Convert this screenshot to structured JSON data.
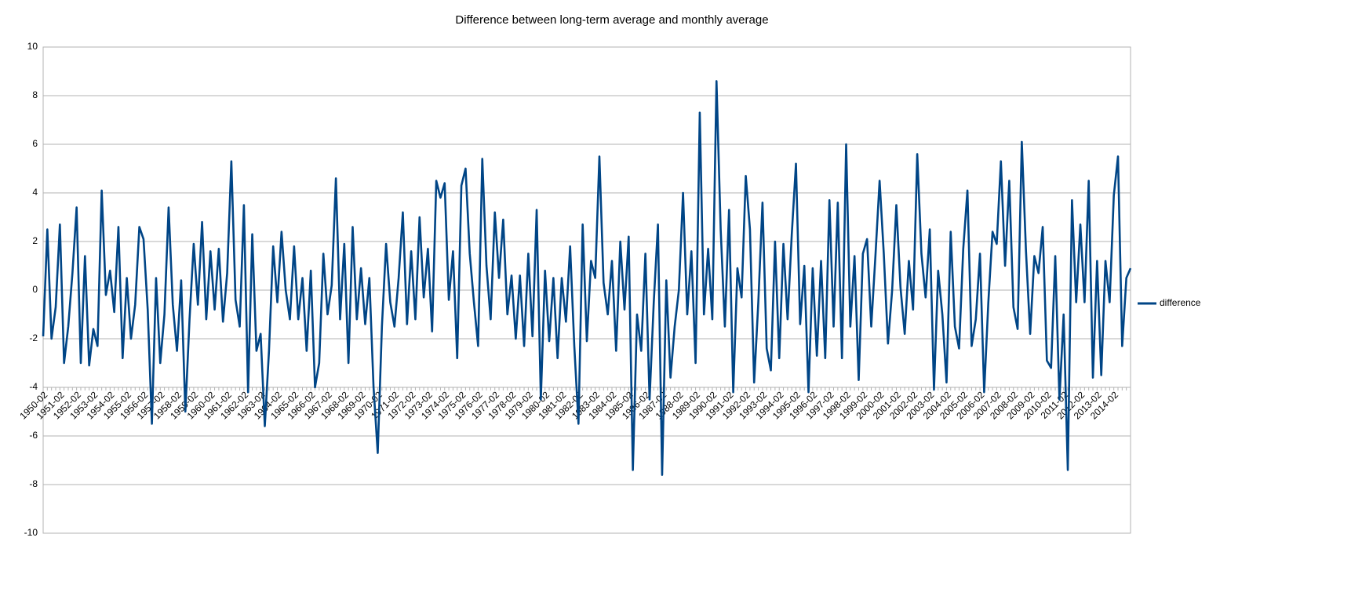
{
  "chart_data": {
    "type": "line",
    "title": "Difference between long-term average and monthly average",
    "categories": [
      "1950-02",
      null,
      null,
      null,
      "1951-02",
      null,
      null,
      null,
      "1952-02",
      null,
      null,
      null,
      "1953-02",
      null,
      null,
      null,
      "1954-02",
      null,
      null,
      null,
      "1955-02",
      null,
      null,
      null,
      "1956-02",
      null,
      null,
      null,
      "1957-02",
      null,
      null,
      null,
      "1958-02",
      null,
      null,
      null,
      "1959-02",
      null,
      null,
      null,
      "1960-02",
      null,
      null,
      null,
      "1961-02",
      null,
      null,
      null,
      "1962-02",
      null,
      null,
      null,
      "1963-02",
      null,
      null,
      null,
      "1964-02",
      null,
      null,
      null,
      "1965-02",
      null,
      null,
      null,
      "1966-02",
      null,
      null,
      null,
      "1967-02",
      null,
      null,
      null,
      "1968-02",
      null,
      null,
      null,
      "1969-02",
      null,
      null,
      null,
      "1970-02",
      null,
      null,
      null,
      "1971-02",
      null,
      null,
      null,
      "1972-02",
      null,
      null,
      null,
      "1973-02",
      null,
      null,
      null,
      "1974-02",
      null,
      null,
      null,
      "1975-02",
      null,
      null,
      null,
      "1976-02",
      null,
      null,
      null,
      "1977-02",
      null,
      null,
      null,
      "1978-02",
      null,
      null,
      null,
      "1979-02",
      null,
      null,
      null,
      "1980-02",
      null,
      null,
      null,
      "1981-02",
      null,
      null,
      null,
      "1982-02",
      null,
      null,
      null,
      "1983-02",
      null,
      null,
      null,
      "1984-02",
      null,
      null,
      null,
      "1985-02",
      null,
      null,
      null,
      "1986-02",
      null,
      null,
      null,
      "1987-02",
      null,
      null,
      null,
      "1988-02",
      null,
      null,
      null,
      "1989-02",
      null,
      null,
      null,
      "1990-02",
      null,
      null,
      null,
      "1991-02",
      null,
      null,
      null,
      "1992-02",
      null,
      null,
      null,
      "1993-02",
      null,
      null,
      null,
      "1994-02",
      null,
      null,
      null,
      "1995-02",
      null,
      null,
      null,
      "1996-02",
      null,
      null,
      null,
      "1997-02",
      null,
      null,
      null,
      "1998-02",
      null,
      null,
      null,
      "1999-02",
      null,
      null,
      null,
      "2000-02",
      null,
      null,
      null,
      "2001-02",
      null,
      null,
      null,
      "2002-02",
      null,
      null,
      null,
      "2003-02",
      null,
      null,
      null,
      "2004-02",
      null,
      null,
      null,
      "2005-02",
      null,
      null,
      null,
      "2006-02",
      null,
      null,
      null,
      "2007-02",
      null,
      null,
      null,
      "2008-02",
      null,
      null,
      null,
      "2009-02",
      null,
      null,
      null,
      "2010-02",
      null,
      null,
      null,
      "2011-02",
      null,
      null,
      null,
      "2012-02",
      null,
      null,
      null,
      "2013-02",
      null,
      null,
      null,
      "2014-02",
      null,
      null,
      null,
      null
    ],
    "series": [
      {
        "name": "difference",
        "color": "#004586",
        "values": [
          -1.9,
          2.5,
          -2,
          -0.7,
          2.7,
          -3,
          -1.5,
          0.7,
          3.4,
          -3,
          1.4,
          -3.1,
          -1.6,
          -2.3,
          4.1,
          -0.2,
          0.8,
          -0.9,
          2.6,
          -2.8,
          0.5,
          -2,
          -0.6,
          2.6,
          2.1,
          -0.8,
          -5.5,
          0.5,
          -3,
          -1,
          3.4,
          -0.6,
          -2.5,
          0.4,
          -5,
          -1.2,
          1.9,
          -0.6,
          2.8,
          -1.2,
          1.6,
          -0.8,
          1.7,
          -1.3,
          0.7,
          5.3,
          -0.4,
          -1.5,
          3.5,
          -4.2,
          2.3,
          -2.5,
          -1.8,
          -5.6,
          -2.5,
          1.8,
          -0.5,
          2.4,
          0,
          -1.2,
          1.8,
          -1.2,
          0.5,
          -2.5,
          0.8,
          -4,
          -3,
          1.5,
          -1,
          0.2,
          4.6,
          -1.2,
          1.9,
          -3,
          2.6,
          -1.2,
          0.9,
          -1.4,
          0.5,
          -4,
          -6.7,
          -1.5,
          1.9,
          -0.5,
          -1.5,
          0.5,
          3.2,
          -1.4,
          1.6,
          -1.2,
          3,
          -0.3,
          1.7,
          -1.7,
          4.5,
          3.8,
          4.4,
          -0.4,
          1.6,
          -2.8,
          4.3,
          5,
          1.5,
          -0.5,
          -2.3,
          5.4,
          1,
          -1.2,
          3.2,
          0.5,
          2.9,
          -1,
          0.6,
          -2,
          0.6,
          -2.3,
          1.5,
          -1.9,
          3.3,
          -4.5,
          0.8,
          -2.1,
          0.5,
          -2.8,
          0.5,
          -1.3,
          1.8,
          -2.3,
          -5.5,
          2.7,
          -2.1,
          1.2,
          0.5,
          5.5,
          0.3,
          -1,
          1.2,
          -2.5,
          2,
          -0.8,
          2.2,
          -7.4,
          -1,
          -2.5,
          1.5,
          -4.5,
          -0.5,
          2.7,
          -7.6,
          0.4,
          -3.6,
          -1.5,
          0,
          4,
          -1,
          1.6,
          -3,
          7.3,
          -1,
          1.7,
          -1.2,
          8.6,
          2.5,
          -1.5,
          3.3,
          -4.2,
          0.9,
          -0.3,
          4.7,
          2.5,
          -3.8,
          -0.5,
          3.6,
          -2.4,
          -3.3,
          2,
          -2.8,
          1.9,
          -1.2,
          2.3,
          5.2,
          -1.4,
          1,
          -4.2,
          0.9,
          -2.7,
          1.2,
          -2.8,
          3.7,
          -1.5,
          3.6,
          -2.8,
          6,
          -1.5,
          1.4,
          -3.7,
          1.5,
          2.1,
          -1.5,
          1.4,
          4.5,
          1.5,
          -2.2,
          0,
          3.5,
          0.1,
          -1.8,
          1.2,
          -0.8,
          5.6,
          1.5,
          -0.3,
          2.5,
          -4.1,
          0.8,
          -1,
          -3.8,
          2.4,
          -1.5,
          -2.4,
          1.7,
          4.1,
          -2.3,
          -1.2,
          1.5,
          -4.2,
          -0.5,
          2.4,
          1.9,
          5.3,
          1,
          4.5,
          -0.7,
          -1.6,
          6.1,
          1.6,
          -1.8,
          1.4,
          0.7,
          2.6,
          -2.9,
          -3.2,
          1.4,
          -4.5,
          -1,
          -7.4,
          3.7,
          -0.5,
          2.7,
          -0.5,
          4.5,
          -3.6,
          1.2,
          -3.5,
          1.2,
          -0.5,
          3.9,
          5.5,
          -2.3,
          0.5,
          0.9
        ]
      }
    ],
    "ylim": [
      -10,
      10
    ],
    "yticks": [
      -10,
      -8,
      -6,
      -4,
      -2,
      0,
      2,
      4,
      6,
      8,
      10
    ],
    "x_axis_at": -4,
    "grid": true,
    "legend": "right"
  }
}
